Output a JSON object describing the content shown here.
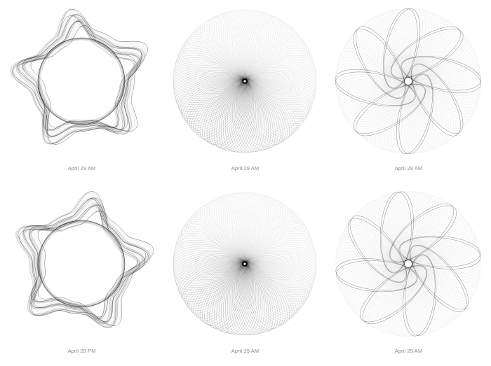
{
  "gallery": {
    "items": [
      {
        "caption": "April 29 AM",
        "kind": "star",
        "petals": 10,
        "rotation": 0.31,
        "ink": "#000000"
      },
      {
        "caption": "April 29 AM",
        "kind": "disc",
        "petals": 140,
        "rotation": 0.0,
        "ink": "#000000"
      },
      {
        "caption": "April 29 AM",
        "kind": "flower",
        "petals": 8,
        "rotation": 0.55,
        "ink": "#000000"
      },
      {
        "caption": "April 29 PM",
        "kind": "star",
        "petals": 10,
        "rotation": 0.0,
        "ink": "#000000"
      },
      {
        "caption": "April 29 AM",
        "kind": "disc",
        "petals": 140,
        "rotation": 0.0,
        "ink": "#000000"
      },
      {
        "caption": "April 29 AM",
        "kind": "flower",
        "petals": 8,
        "rotation": 1.2,
        "ink": "#000000"
      }
    ]
  }
}
